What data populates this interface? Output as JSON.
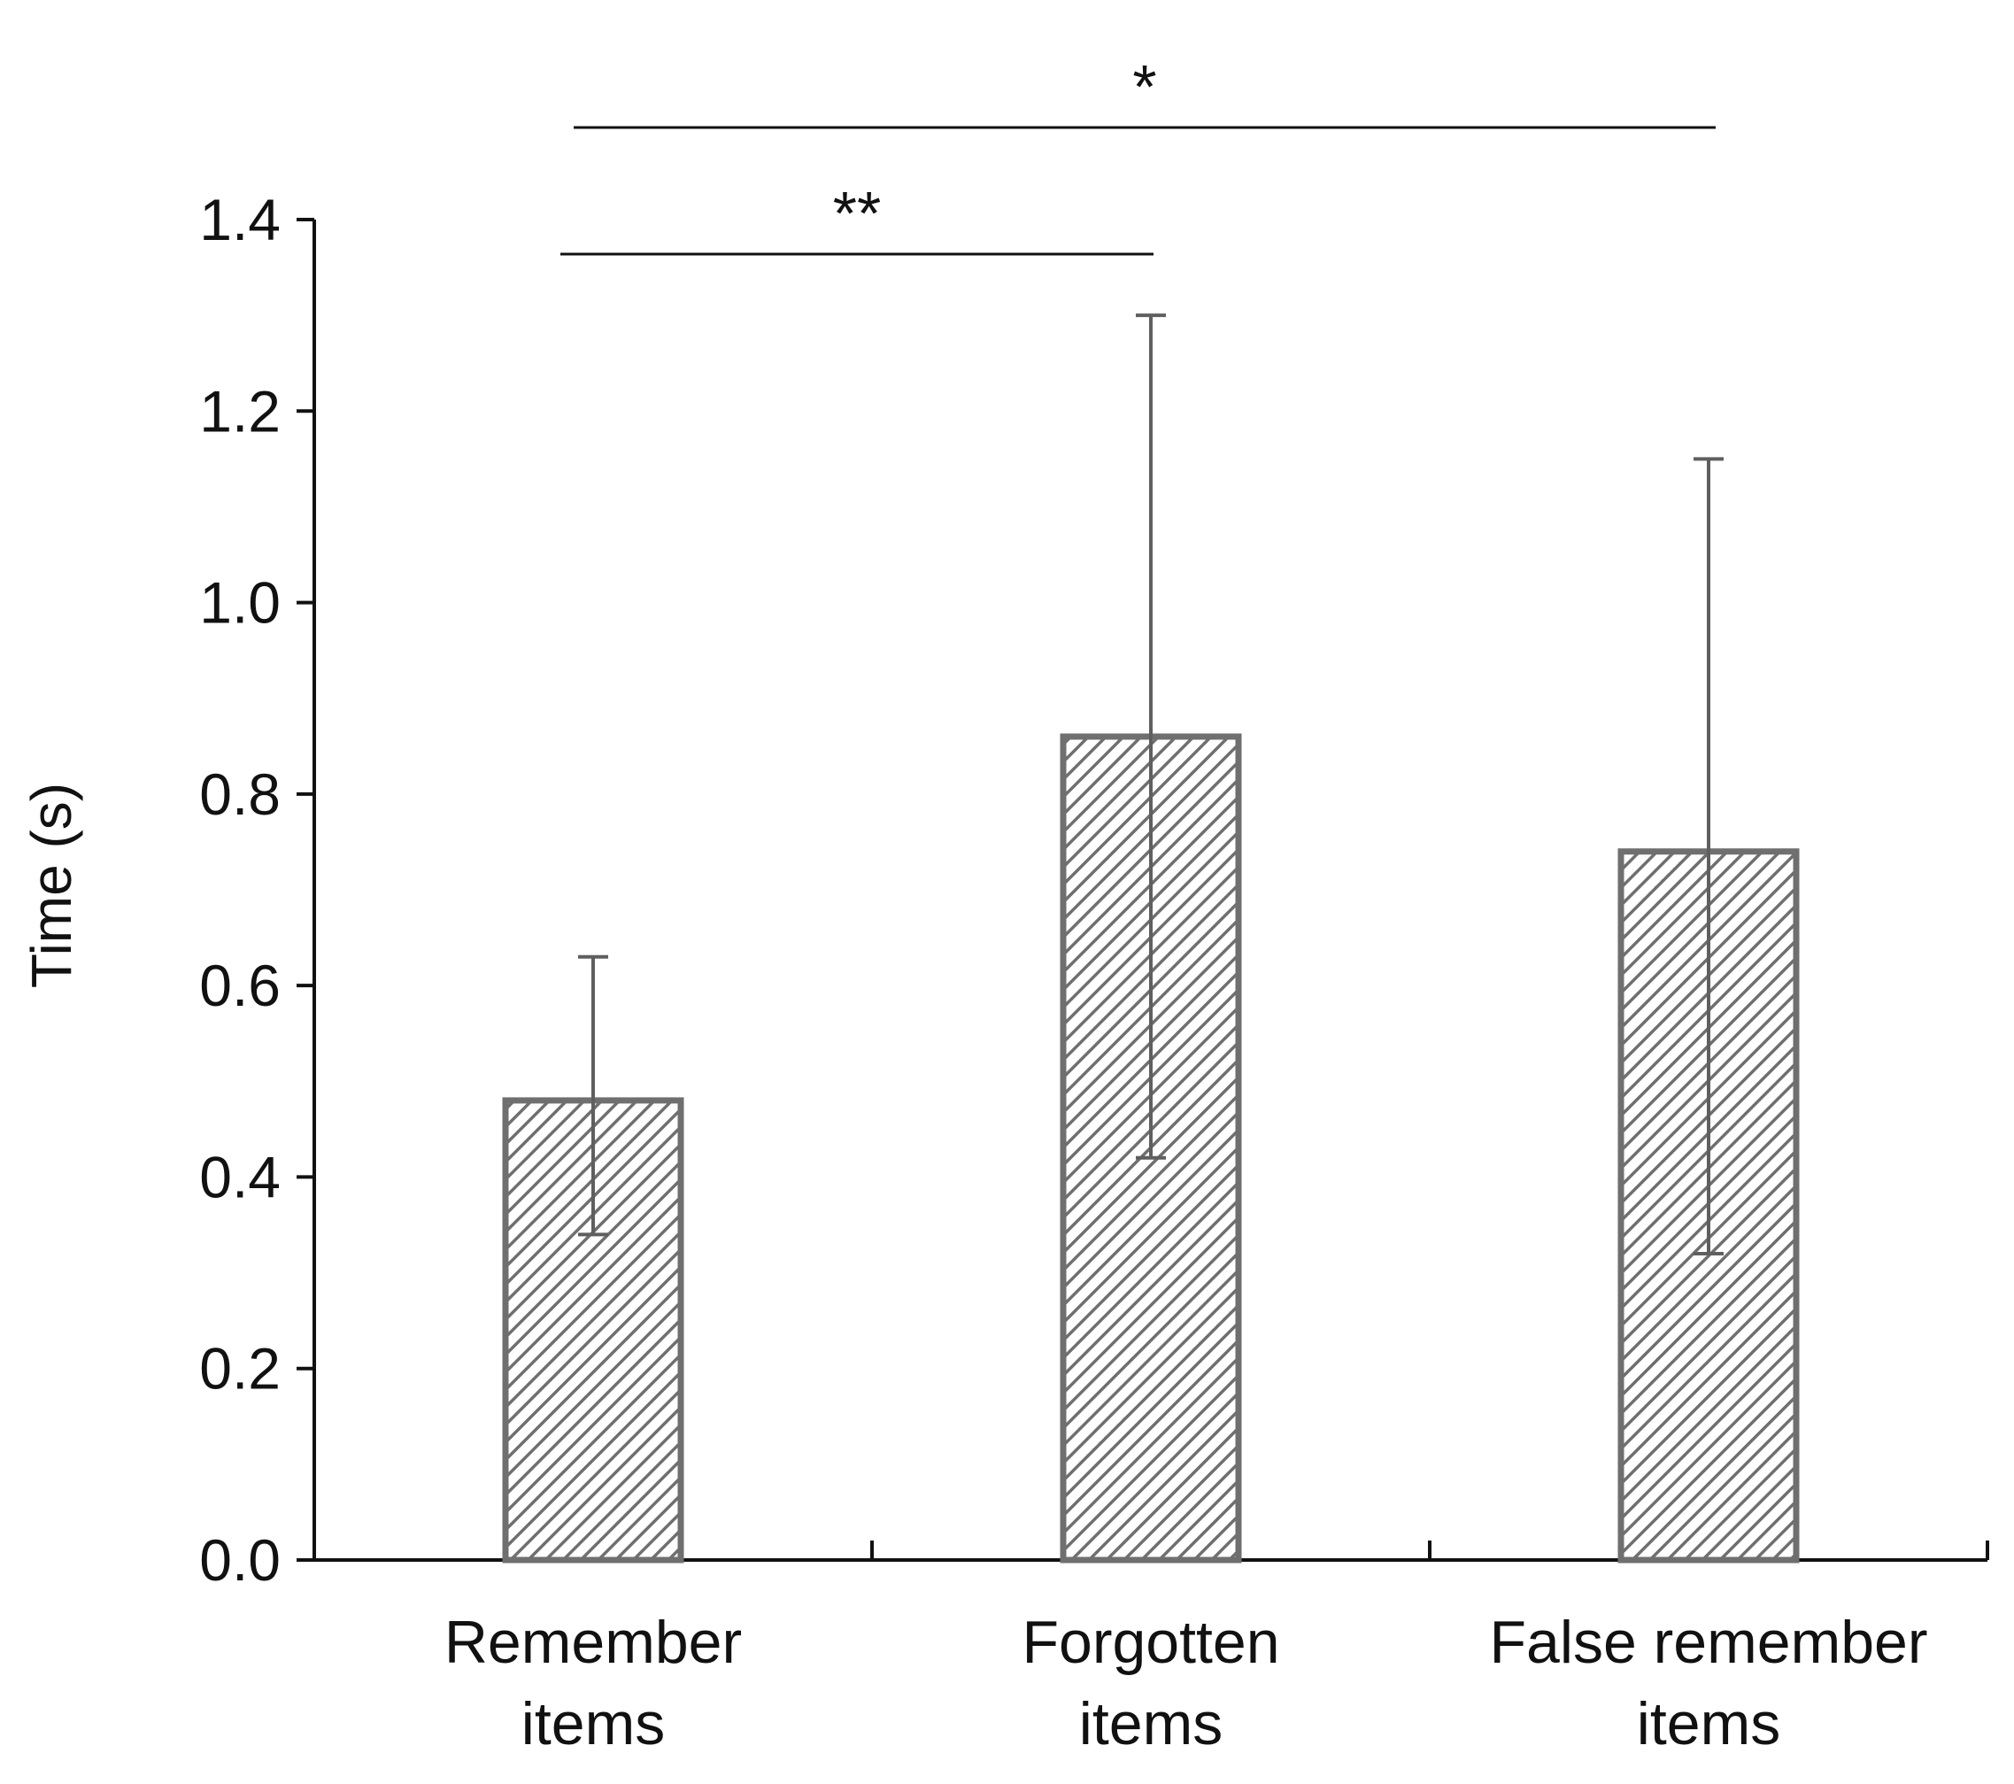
{
  "chart_data": {
    "type": "bar",
    "title": "",
    "xlabel": "",
    "ylabel": "Time (s)",
    "ylim": [
      0,
      1.4
    ],
    "yticks": [
      0.0,
      0.2,
      0.4,
      0.6,
      0.8,
      1.0,
      1.2,
      1.4
    ],
    "ytick_labels": [
      "0.0",
      "0.2",
      "0.4",
      "0.6",
      "0.8",
      "1.0",
      "1.2",
      "1.4"
    ],
    "grid": false,
    "legend": "none",
    "categories": [
      [
        "Remember",
        "items"
      ],
      [
        "Forgotten",
        "items"
      ],
      [
        "False remember",
        "items"
      ]
    ],
    "values": [
      0.48,
      0.86,
      0.74
    ],
    "error_upper": [
      0.63,
      1.3,
      1.15
    ],
    "error_lower": [
      0.34,
      0.42,
      0.32
    ],
    "bar_fill": "hatched gray",
    "bar_color": "#6f6f6f",
    "significance": [
      {
        "from": 0,
        "to": 1,
        "label": "**"
      },
      {
        "from": 0,
        "to": 2,
        "label": "*"
      }
    ]
  }
}
